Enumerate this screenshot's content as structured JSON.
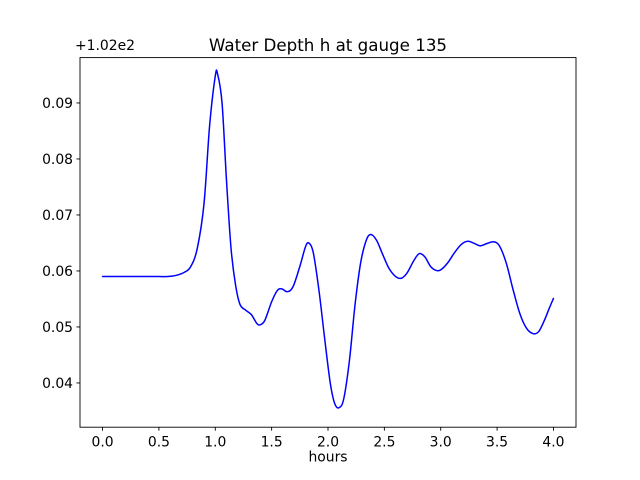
{
  "window": {
    "background_color": "#ffffff"
  },
  "chart_data": {
    "type": "line",
    "title": "Water Depth h at gauge 135",
    "xlabel": "hours",
    "ylabel": "",
    "y_offset_text": "+1.02e2",
    "line_color": "#0000ff",
    "axis_color": "#000000",
    "grid": false,
    "legend_position": "none",
    "xlim": [
      -0.2,
      4.2
    ],
    "ylim": [
      0.0321,
      0.0981
    ],
    "x_ticks": [
      0.0,
      0.5,
      1.0,
      1.5,
      2.0,
      2.5,
      3.0,
      3.5,
      4.0
    ],
    "x_tick_labels": [
      "0.0",
      "0.5",
      "1.0",
      "1.5",
      "2.0",
      "2.5",
      "3.0",
      "3.5",
      "4.0"
    ],
    "y_ticks": [
      0.04,
      0.05,
      0.06,
      0.07,
      0.08,
      0.09
    ],
    "y_tick_labels": [
      "0.04",
      "0.05",
      "0.06",
      "0.07",
      "0.08",
      "0.09"
    ],
    "series": [
      {
        "name": "water-depth-h",
        "x": [
          0.0,
          0.1,
          0.2,
          0.3,
          0.4,
          0.5,
          0.58,
          0.65,
          0.72,
          0.78,
          0.84,
          0.9,
          0.95,
          1.0,
          1.02,
          1.06,
          1.1,
          1.14,
          1.18,
          1.22,
          1.27,
          1.32,
          1.37,
          1.4,
          1.44,
          1.5,
          1.55,
          1.59,
          1.64,
          1.69,
          1.75,
          1.8,
          1.83,
          1.87,
          1.92,
          1.97,
          2.02,
          2.06,
          2.1,
          2.14,
          2.19,
          2.24,
          2.29,
          2.34,
          2.38,
          2.43,
          2.48,
          2.54,
          2.6,
          2.65,
          2.7,
          2.76,
          2.81,
          2.86,
          2.91,
          2.96,
          3.0,
          3.06,
          3.12,
          3.18,
          3.24,
          3.3,
          3.35,
          3.41,
          3.47,
          3.52,
          3.58,
          3.64,
          3.7,
          3.76,
          3.82,
          3.87,
          3.92,
          3.96,
          4.0
        ],
        "y": [
          0.059,
          0.059,
          0.059,
          0.059,
          0.059,
          0.059,
          0.059,
          0.0592,
          0.0597,
          0.0607,
          0.064,
          0.072,
          0.086,
          0.0948,
          0.0952,
          0.09,
          0.076,
          0.064,
          0.0575,
          0.054,
          0.053,
          0.0522,
          0.0506,
          0.0504,
          0.0512,
          0.0545,
          0.0565,
          0.0568,
          0.0563,
          0.0572,
          0.0608,
          0.0643,
          0.065,
          0.0632,
          0.0565,
          0.048,
          0.04,
          0.0363,
          0.0356,
          0.0372,
          0.044,
          0.054,
          0.0615,
          0.0655,
          0.0665,
          0.0655,
          0.0632,
          0.0605,
          0.059,
          0.0587,
          0.0596,
          0.0618,
          0.0631,
          0.0625,
          0.0608,
          0.0601,
          0.0602,
          0.0614,
          0.0632,
          0.0647,
          0.0653,
          0.0649,
          0.0645,
          0.0649,
          0.0652,
          0.0645,
          0.0615,
          0.0568,
          0.0525,
          0.0498,
          0.0488,
          0.0492,
          0.0512,
          0.0532,
          0.0551
        ]
      }
    ]
  }
}
